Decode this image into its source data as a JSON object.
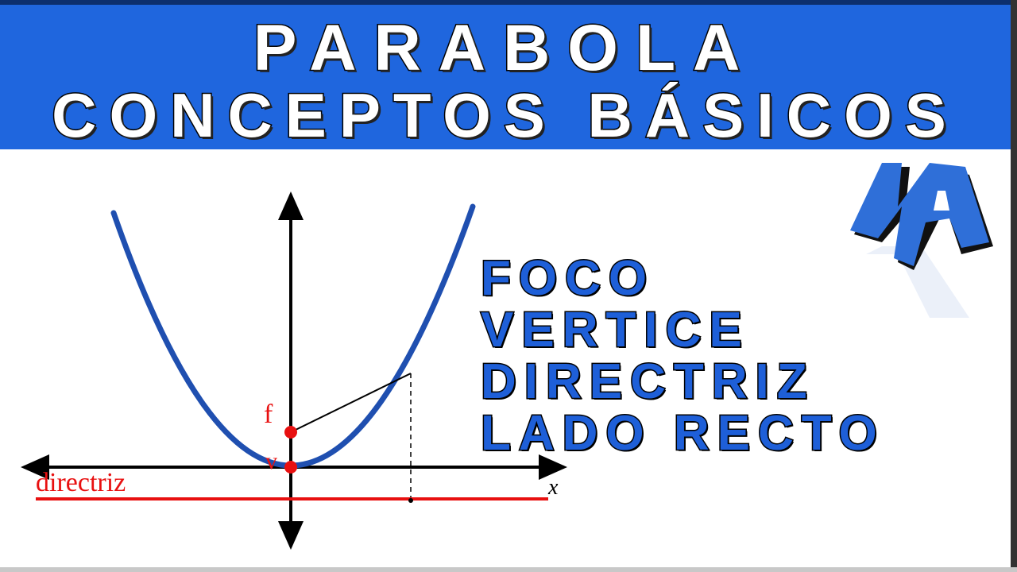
{
  "header": {
    "line1": "PARABOLA",
    "line2": "CONCEPTOS BÁSICOS"
  },
  "concepts": [
    "FOCO",
    "VERTICE",
    "DIRECTRIZ",
    "LADO RECTO"
  ],
  "diagram": {
    "focus_label": "f",
    "vertex_label": "v",
    "directrix_label": "directriz",
    "x_axis_label": "x"
  },
  "logo": {
    "text": "MA"
  },
  "colors": {
    "header_blue": "#1f66de",
    "text_blue": "#1e5fd8",
    "parabola": "#1f4fb0",
    "red": "#e81010"
  }
}
